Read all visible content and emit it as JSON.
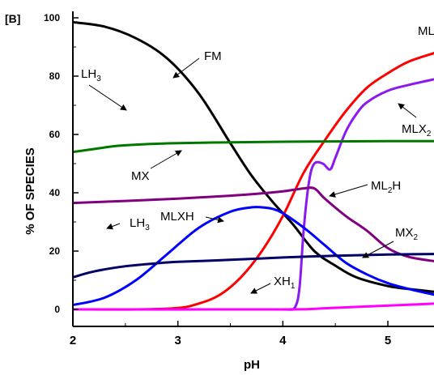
{
  "chart_data": {
    "type": "line",
    "panel_label": "[B]",
    "xlabel": "pH",
    "ylabel": "% OF SPECIES",
    "xlim": [
      2,
      5.45
    ],
    "ylim": [
      -4,
      103
    ],
    "x_ticks": [
      2,
      3,
      4,
      5
    ],
    "x_tick_labels": [
      "2",
      "3",
      "4",
      "5"
    ],
    "y_ticks": [
      0,
      20,
      40,
      60,
      80,
      100
    ],
    "y_tick_labels": [
      "0",
      "20",
      "40",
      "60",
      "80",
      "100"
    ],
    "grid": false,
    "legend": "none",
    "series": [
      {
        "name": "FM",
        "color": "#000000",
        "x": [
          2.0,
          2.3,
          2.6,
          2.9,
          3.2,
          3.5,
          3.7,
          3.9,
          4.1,
          4.3,
          4.5,
          4.7,
          5.0,
          5.2,
          5.45
        ],
        "y": [
          98.5,
          97,
          93,
          86,
          74,
          57,
          46,
          37,
          29,
          20,
          15,
          11,
          8,
          7,
          6
        ]
      },
      {
        "name": "ML",
        "color": "#ff0000",
        "x": [
          2.0,
          2.6,
          3.0,
          3.2,
          3.4,
          3.6,
          3.8,
          4.0,
          4.2,
          4.4,
          4.6,
          4.8,
          5.0,
          5.2,
          5.45
        ],
        "y": [
          0,
          0,
          0.5,
          2,
          5,
          11,
          20,
          32,
          47,
          58,
          68,
          76,
          81,
          85,
          88
        ]
      },
      {
        "name": "MLX2",
        "color": "#8b1af0",
        "x": [
          2.0,
          3.9,
          4.05,
          4.12,
          4.16,
          4.2,
          4.25,
          4.3,
          4.38,
          4.45,
          4.5,
          4.6,
          4.7,
          4.8,
          5.0,
          5.2,
          5.45
        ],
        "y": [
          0,
          0,
          0,
          1,
          8,
          28,
          44,
          50,
          50,
          48,
          52,
          61,
          67,
          71,
          75,
          77,
          79
        ]
      },
      {
        "name": "MX",
        "color": "#007800",
        "x": [
          2.0,
          2.2,
          2.4,
          2.6,
          2.8,
          3.0,
          3.5,
          4.0,
          4.5,
          5.0,
          5.45
        ],
        "y": [
          54,
          55,
          56,
          56.5,
          56.8,
          57,
          57.3,
          57.5,
          57.6,
          57.7,
          57.7
        ]
      },
      {
        "name": "ML2H",
        "color": "#800080",
        "x": [
          2.0,
          2.5,
          3.0,
          3.5,
          3.8,
          4.0,
          4.1,
          4.2,
          4.3,
          4.4,
          4.6,
          4.8,
          5.0,
          5.2,
          5.45
        ],
        "y": [
          36.5,
          37.2,
          38,
          39,
          39.8,
          40.5,
          41,
          41.5,
          41.5,
          38,
          32,
          27,
          21,
          18,
          16.5
        ]
      },
      {
        "name": "MLXH",
        "color": "#0000ff",
        "x": [
          2.0,
          2.3,
          2.6,
          2.9,
          3.2,
          3.5,
          3.7,
          3.8,
          3.9,
          4.0,
          4.2,
          4.4,
          4.6,
          4.8,
          5.0,
          5.2,
          5.45
        ],
        "y": [
          1.5,
          4,
          10,
          19,
          28,
          33.5,
          35,
          35,
          34.5,
          33,
          28,
          22,
          16,
          12,
          9,
          7,
          5
        ]
      },
      {
        "name": "MX2",
        "color": "#000066",
        "x": [
          2.0,
          2.2,
          2.5,
          2.8,
          3.0,
          3.5,
          4.0,
          4.5,
          5.0,
          5.45
        ],
        "y": [
          11,
          13,
          14.8,
          15.8,
          16.3,
          17,
          17.8,
          18.4,
          18.8,
          19
        ]
      },
      {
        "name": "XH",
        "color": "#ff00ff",
        "x": [
          2.0,
          4.0,
          4.4,
          4.8,
          5.2,
          5.45
        ],
        "y": [
          0,
          0,
          0.4,
          1,
          1.6,
          2
        ]
      }
    ],
    "annotations": [
      {
        "text": "FM",
        "sub": ""
      },
      {
        "text": "ML",
        "sub": ""
      },
      {
        "text": "LH",
        "sub": "3"
      },
      {
        "text": "MLX",
        "sub": "2"
      },
      {
        "text": "MX",
        "sub": ""
      },
      {
        "text": "ML",
        "sub": "2",
        "suffix": "H"
      },
      {
        "text": "LH",
        "sub": "3"
      },
      {
        "text": "MLXH",
        "sub": ""
      },
      {
        "text": "MX",
        "sub": "2"
      },
      {
        "text": "XH",
        "sub": "1"
      }
    ]
  }
}
